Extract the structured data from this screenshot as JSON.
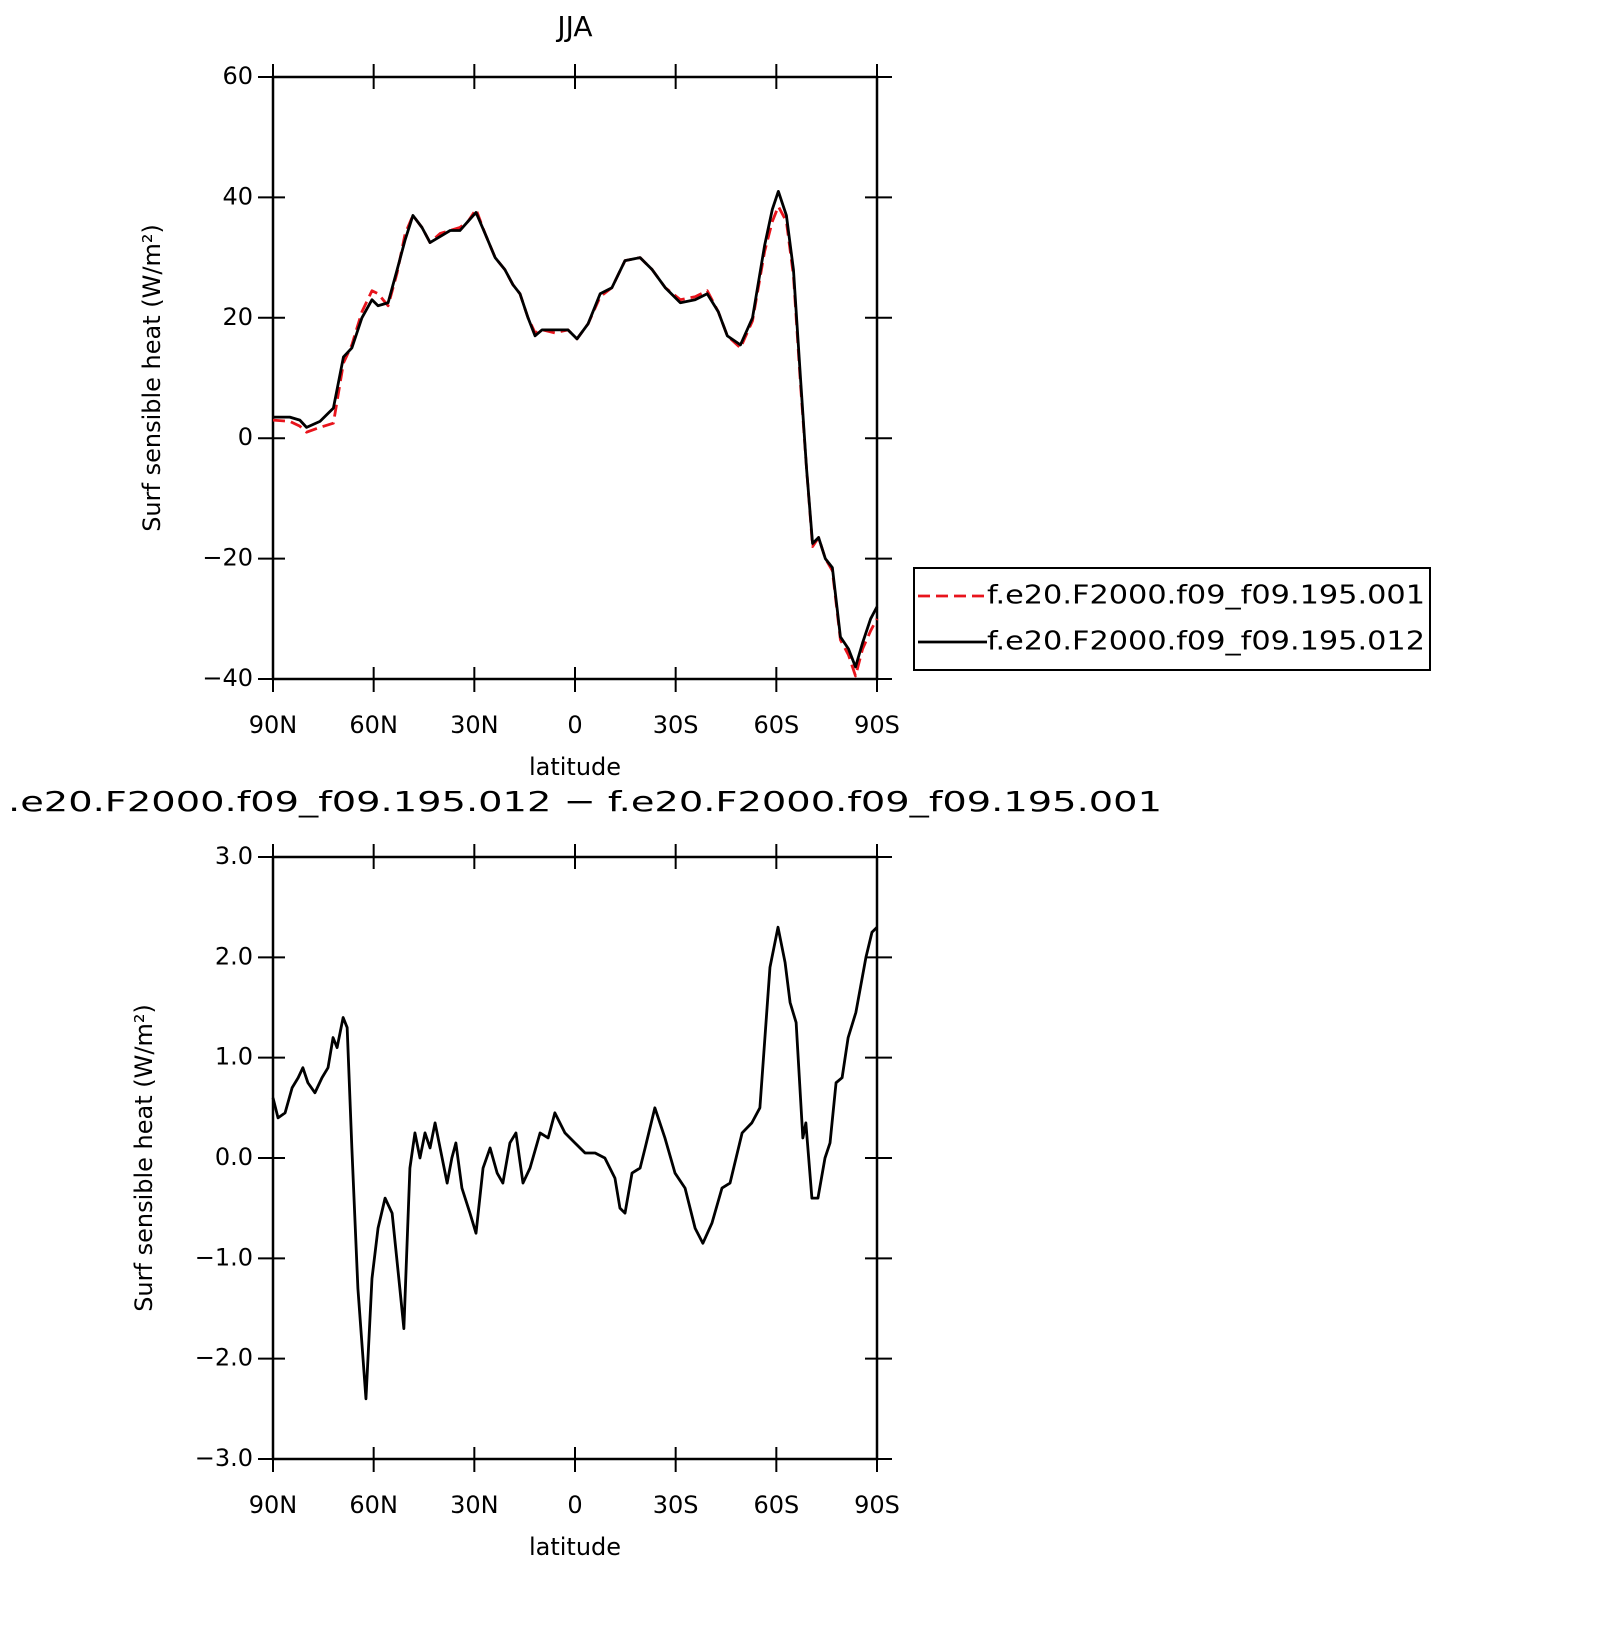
{
  "chart_data": [
    {
      "type": "line",
      "title": "JJA",
      "xlabel": "latitude",
      "ylabel": "Surf sensible heat (W/m²)",
      "xlim": [
        90,
        -90
      ],
      "xticks": [
        {
          "value": 90,
          "label": "90N"
        },
        {
          "value": 60,
          "label": "60N"
        },
        {
          "value": 30,
          "label": "30N"
        },
        0,
        {
          "value": -30,
          "label": "30S"
        },
        {
          "value": -60,
          "label": "60S"
        },
        {
          "value": -90,
          "label": "90S"
        }
      ],
      "ylim": [
        -40,
        60
      ],
      "yticks": [
        {
          "value": -40,
          "label": "−40"
        },
        {
          "value": -20,
          "label": "−20"
        },
        0,
        20,
        40,
        60
      ],
      "legend": "right",
      "x": [
        90,
        85,
        82,
        80,
        76,
        72,
        69,
        66.5,
        63.5,
        60.5,
        58.7,
        55.7,
        53,
        50.6,
        48.3,
        45.6,
        43.2,
        40.2,
        37.2,
        34.3,
        31.9,
        29.5,
        26.8,
        23.8,
        20.9,
        18.5,
        16.4,
        14,
        11.9,
        9.8,
        6,
        2.1,
        -0.6,
        -3.9,
        -7.5,
        -11,
        -14.9,
        -19.4,
        -23,
        -26.9,
        -31.4,
        -35.8,
        -39.4,
        -42.7,
        -45.4,
        -49.3,
        -52.9,
        -56.5,
        -58.8,
        -60.6,
        -63,
        -65.1,
        -67.2,
        -69,
        -70.8,
        -72.6,
        -74.6,
        -76.7,
        -79.1,
        -81.5,
        -83.6,
        -85.7,
        -88.1,
        -90
      ],
      "series": [
        {
          "name": "f.e20.F2000.f09_f09.195.001",
          "color": "#e8141c",
          "style": "dashed",
          "values": [
            3,
            2.8,
            2,
            1,
            1.8,
            2.5,
            12.5,
            15.5,
            21,
            24.5,
            24,
            22,
            27.5,
            34,
            37,
            35,
            32.5,
            34,
            34.5,
            35,
            36,
            38,
            34,
            30,
            28,
            25.5,
            24,
            20,
            17.5,
            18,
            17.5,
            18,
            16.5,
            19,
            23.5,
            25,
            29.5,
            30,
            28,
            25,
            23,
            23.5,
            24.5,
            21,
            17,
            15,
            19.5,
            31,
            36,
            38.5,
            36,
            27,
            9,
            -5,
            -18,
            -16.5,
            -20,
            -22,
            -33.5,
            -36,
            -39.5,
            -35,
            -32,
            -30
          ]
        },
        {
          "name": "f.e20.F2000.f09_f09.195.012",
          "color": "#000000",
          "style": "solid",
          "values": [
            3.5,
            3.5,
            3,
            1.8,
            2.8,
            5,
            13.5,
            15,
            20,
            23,
            22,
            22.5,
            28,
            33,
            37,
            35,
            32.5,
            33.5,
            34.5,
            34.5,
            36,
            37.5,
            34,
            30,
            28,
            25.5,
            24,
            20,
            17,
            18,
            18,
            18,
            16.5,
            19,
            24,
            25,
            29.5,
            30,
            28,
            25,
            22.5,
            23,
            24,
            21,
            17,
            15.5,
            20,
            32,
            38,
            41,
            37,
            28,
            10,
            -5,
            -17.5,
            -16.5,
            -20,
            -21.5,
            -33,
            -35,
            -38,
            -34,
            -30,
            -28
          ]
        }
      ]
    },
    {
      "type": "line",
      "title": ".e20.F2000.f09_f09.195.012 − f.e20.F2000.f09_f09.195.001",
      "xlabel": "latitude",
      "ylabel": "Surf sensible heat (W/m²)",
      "xlim": [
        90,
        -90
      ],
      "xticks": [
        {
          "value": 90,
          "label": "90N"
        },
        {
          "value": 60,
          "label": "60N"
        },
        {
          "value": 30,
          "label": "30N"
        },
        0,
        {
          "value": -30,
          "label": "30S"
        },
        {
          "value": -60,
          "label": "60S"
        },
        {
          "value": -90,
          "label": "90S"
        }
      ],
      "ylim": [
        -3,
        3
      ],
      "yticks": [
        {
          "value": -3,
          "label": "−3.0"
        },
        {
          "value": -2,
          "label": "−2.0"
        },
        {
          "value": -1,
          "label": "−1.0"
        },
        {
          "value": 0,
          "label": "0.0"
        },
        {
          "value": 1,
          "label": "1.0"
        },
        {
          "value": 2,
          "label": "2.0"
        },
        {
          "value": 3,
          "label": "3.0"
        }
      ],
      "color": "#000000",
      "x": [
        90,
        88.5,
        86.4,
        84.3,
        82.5,
        81.1,
        79.6,
        77.5,
        75.4,
        73.6,
        72.1,
        70.9,
        69.1,
        67.9,
        66.5,
        64.7,
        62.3,
        60.5,
        58.7,
        56.6,
        54.5,
        52.2,
        51,
        49.2,
        47.7,
        46.2,
        44.7,
        43.2,
        41.7,
        40.2,
        38.1,
        36.7,
        35.5,
        33.7,
        31.3,
        29.5,
        27.4,
        25.3,
        23.2,
        21.5,
        19.4,
        17.6,
        15.5,
        13.4,
        10.4,
        8,
        6,
        3,
        0,
        -3,
        -6,
        -8.9,
        -11.9,
        -13.4,
        -14.9,
        -17,
        -19.4,
        -20.9,
        -23.8,
        -26.8,
        -29.8,
        -32.8,
        -35.8,
        -38.1,
        -40.8,
        -43.8,
        -46.2,
        -49.8,
        -52.7,
        -55.1,
        -58.1,
        -60.5,
        -62.6,
        -64.1,
        -65.9,
        -67.9,
        -68.8,
        -70.6,
        -72.4,
        -74.5,
        -76,
        -77.8,
        -79.6,
        -81.4,
        -83.7,
        -86.7,
        -88.5,
        -90
      ],
      "values": [
        0.6,
        0.4,
        0.45,
        0.7,
        0.8,
        0.9,
        0.75,
        0.65,
        0.8,
        0.9,
        1.2,
        1.1,
        1.4,
        1.3,
        0.1,
        -1.3,
        -2.4,
        -1.2,
        -0.7,
        -0.4,
        -0.55,
        -1.3,
        -1.7,
        -0.1,
        0.25,
        0.0,
        0.25,
        0.1,
        0.35,
        0.1,
        -0.25,
        0.0,
        0.15,
        -0.3,
        -0.55,
        -0.75,
        -0.1,
        0.1,
        -0.15,
        -0.25,
        0.15,
        0.25,
        -0.25,
        -0.1,
        0.25,
        0.2,
        0.45,
        0.25,
        0.15,
        0.05,
        0.05,
        0.0,
        -0.2,
        -0.5,
        -0.55,
        -0.15,
        -0.1,
        0.1,
        0.5,
        0.2,
        -0.15,
        -0.3,
        -0.7,
        -0.85,
        -0.65,
        -0.3,
        -0.25,
        0.25,
        0.35,
        0.5,
        1.9,
        2.3,
        1.95,
        1.55,
        1.35,
        0.2,
        0.35,
        -0.4,
        -0.4,
        0.0,
        0.15,
        0.75,
        0.8,
        1.2,
        1.45,
        2.0,
        2.25,
        2.3
      ]
    }
  ]
}
